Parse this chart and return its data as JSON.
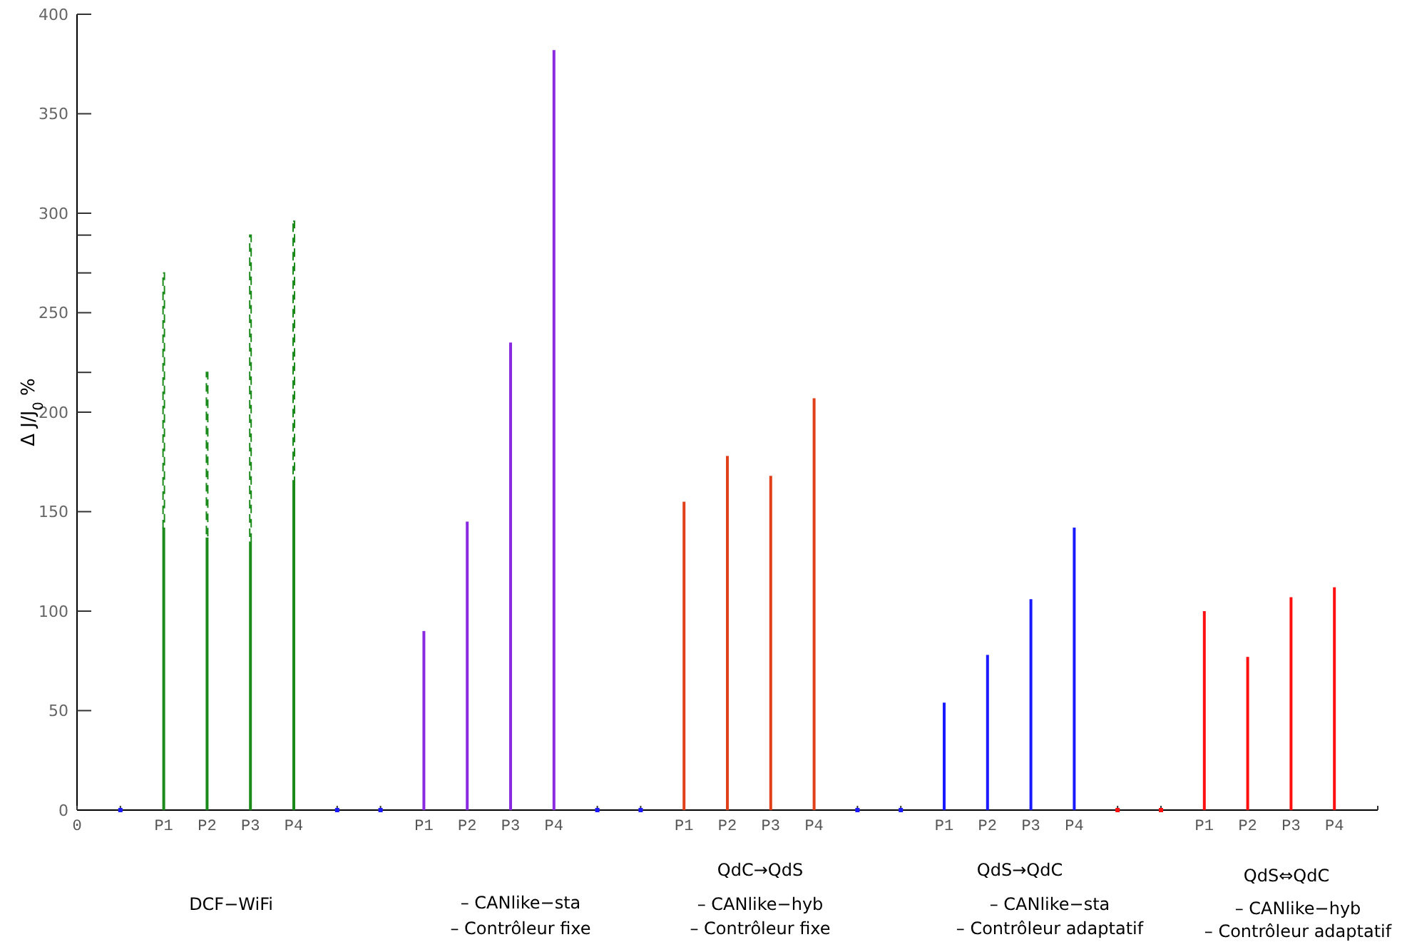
{
  "chart_data": {
    "type": "bar",
    "stacked": true,
    "ylabel": "Δ J/J$_{0}$ %",
    "categories": [
      "0",
      null,
      "P1",
      "P2",
      "P3",
      "P4",
      null,
      null,
      "P1",
      "P2",
      "P3",
      "P4",
      null,
      null,
      "P1",
      "P2",
      "P3",
      "P4",
      null,
      null,
      "P1",
      "P2",
      "P3",
      "P4",
      null,
      null,
      "P1",
      "P2",
      "P3",
      "P4",
      null
    ],
    "series": [
      {
        "color": "#1a8a1a",
        "values": [
          null,
          null,
          142,
          137,
          135,
          165,
          null,
          null,
          null,
          null,
          null,
          null,
          null,
          null,
          null,
          null,
          null,
          null,
          null,
          null,
          null,
          null,
          null,
          null,
          null,
          null,
          null,
          null,
          null,
          null,
          null
        ]
      },
      {
        "color": "#1a8a1a",
        "line_style": "dashed",
        "values": [
          null,
          null,
          128,
          83,
          154,
          131,
          null,
          null,
          null,
          null,
          null,
          null,
          null,
          null,
          null,
          null,
          null,
          null,
          null,
          null,
          null,
          null,
          null,
          null,
          null,
          null,
          null,
          null,
          null,
          null,
          null
        ]
      },
      {
        "color": "#8a2be2",
        "values": [
          null,
          null,
          null,
          null,
          null,
          null,
          null,
          null,
          90,
          145,
          235,
          382,
          null,
          null,
          null,
          null,
          null,
          null,
          null,
          null,
          null,
          null,
          null,
          null,
          null,
          null,
          null,
          null,
          null,
          null,
          null
        ]
      },
      {
        "color": "#e0401a",
        "values": [
          null,
          null,
          null,
          null,
          null,
          null,
          null,
          null,
          null,
          null,
          null,
          null,
          null,
          null,
          155,
          178,
          168,
          207,
          null,
          null,
          null,
          null,
          null,
          null,
          null,
          null,
          null,
          null,
          null,
          null,
          null
        ]
      },
      {
        "color": "#1a1aff",
        "values": [
          null,
          null,
          null,
          null,
          null,
          null,
          null,
          null,
          null,
          null,
          null,
          null,
          null,
          null,
          null,
          null,
          null,
          null,
          null,
          null,
          54,
          78,
          106,
          142,
          null,
          null,
          null,
          null,
          null,
          null,
          null
        ]
      },
      {
        "color": "#ff1010",
        "values": [
          null,
          null,
          null,
          null,
          null,
          null,
          null,
          null,
          null,
          null,
          null,
          null,
          null,
          null,
          null,
          null,
          null,
          null,
          null,
          null,
          null,
          null,
          null,
          null,
          null,
          null,
          100,
          77,
          107,
          112,
          null
        ]
      },
      {
        "type": "scatter",
        "marker": "square",
        "color": "#1a1aff",
        "values": [
          null,
          0,
          null,
          null,
          null,
          null,
          0,
          0,
          null,
          null,
          null,
          null,
          0,
          0,
          null,
          null,
          null,
          null,
          0,
          0,
          null,
          null,
          null,
          null,
          null,
          null,
          null,
          null,
          null,
          null,
          null
        ]
      },
      {
        "type": "scatter",
        "marker": "square",
        "color": "#ff1010",
        "values": [
          null,
          null,
          null,
          null,
          null,
          null,
          null,
          null,
          null,
          null,
          null,
          null,
          null,
          null,
          null,
          null,
          null,
          null,
          null,
          null,
          null,
          null,
          null,
          null,
          0,
          0,
          null,
          null,
          null,
          null,
          null
        ]
      }
    ],
    "ylim": [
      0,
      400
    ],
    "yticks": [
      0,
      50,
      100,
      150,
      200,
      {
        "value": 220,
        "label": null
      },
      250,
      {
        "value": 270,
        "label": null
      },
      {
        "value": 289,
        "label": null
      },
      300,
      350,
      400
    ],
    "grid": false,
    "annotations": [
      "DCF−WiFi",
      "– CANlike−sta",
      "– Contrôleur fixe",
      "QdC→QdS",
      "– CANlike−hyb",
      "– Contrôleur fixe",
      "QdS→QdC",
      "– CANlike−sta",
      "– Contrôleur adaptatif",
      "QdS⇔QdC",
      "– CANlike−hyb",
      "– Contrôleur adaptatif"
    ]
  }
}
